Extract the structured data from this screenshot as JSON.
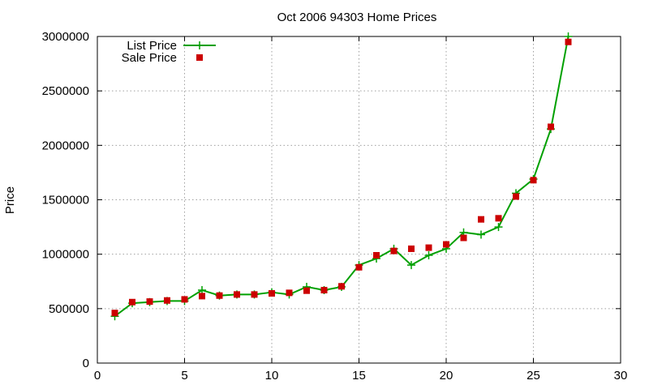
{
  "chart_data": {
    "type": "line",
    "title": "Oct 2006 94303 Home Prices",
    "xlabel": "",
    "ylabel": "Price",
    "xlim": [
      0,
      30
    ],
    "ylim": [
      0,
      3000000
    ],
    "xticks": [
      0,
      5,
      10,
      15,
      20,
      25,
      30
    ],
    "yticks": [
      0,
      500000,
      1000000,
      1500000,
      2000000,
      2500000,
      3000000
    ],
    "grid": true,
    "legend_position": "top-left",
    "x": [
      1,
      2,
      3,
      4,
      5,
      6,
      7,
      8,
      9,
      10,
      11,
      12,
      13,
      14,
      15,
      16,
      17,
      18,
      19,
      20,
      21,
      22,
      23,
      24,
      25,
      26,
      27
    ],
    "series": [
      {
        "name": "List Price",
        "style": "line+cross",
        "color": "#00a000",
        "values": [
          430000,
          550000,
          560000,
          570000,
          570000,
          670000,
          620000,
          630000,
          630000,
          650000,
          630000,
          700000,
          670000,
          700000,
          900000,
          960000,
          1050000,
          900000,
          990000,
          1050000,
          1200000,
          1180000,
          1250000,
          1560000,
          1690000,
          2150000,
          3000000
        ]
      },
      {
        "name": "Sale Price",
        "style": "square",
        "color": "#cc0000",
        "values": [
          460000,
          560000,
          565000,
          575000,
          585000,
          615000,
          620000,
          630000,
          630000,
          640000,
          645000,
          665000,
          670000,
          705000,
          880000,
          990000,
          1030000,
          1050000,
          1060000,
          1090000,
          1150000,
          1320000,
          1330000,
          1530000,
          1680000,
          2170000,
          2950000
        ]
      }
    ]
  }
}
